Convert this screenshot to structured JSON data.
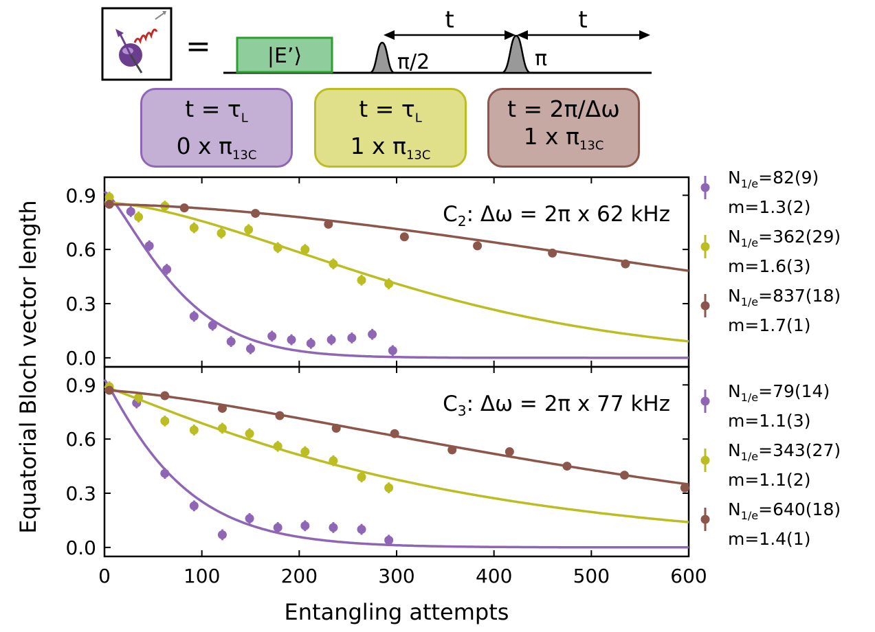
{
  "colors": {
    "purple": "#8e66b5",
    "yellow": "#bcbd22",
    "brown": "#8c564b"
  },
  "sequence": {
    "equals": "=",
    "state_label": "|E’⟩",
    "pulse1_label": "π/2",
    "pulse2_label": "π",
    "t_label_1": "t",
    "t_label_2": "t"
  },
  "boxes": [
    {
      "line1": "t = τL",
      "line2": "0 x π13C"
    },
    {
      "line1": "t = τL",
      "line2": "1 x π13C"
    },
    {
      "line1": "t = 2π/Δω",
      "line2": "1 x π13C"
    }
  ],
  "chart_data": {
    "type": "scatter",
    "xlabel": "Entangling attempts",
    "ylabel": "Equatorial Bloch vector length",
    "xlim": [
      0,
      600
    ],
    "ylim": [
      -0.05,
      1.0
    ],
    "xticks": [
      0,
      100,
      200,
      300,
      400,
      500,
      600
    ],
    "yticks": [
      0.0,
      0.3,
      0.6,
      0.9
    ],
    "panels": [
      {
        "annotation": "C2: Δω = 2π x 62 kHz",
        "series": [
          {
            "color": "purple",
            "legend": [
              "N1/e=82(9)",
              "m=1.3(2)"
            ],
            "fit": {
              "A": 0.92,
              "N": 82,
              "m": 1.3
            },
            "x": [
              27,
              46,
              64,
              92,
              111,
              130,
              150,
              172,
              192,
              212,
              233,
              254,
              275,
              296
            ],
            "y": [
              0.81,
              0.62,
              0.49,
              0.23,
              0.18,
              0.09,
              0.05,
              0.12,
              0.1,
              0.08,
              0.1,
              0.11,
              0.13,
              0.04
            ],
            "err": 0.03
          },
          {
            "color": "yellow",
            "legend": [
              "N1/e=362(29)",
              "m=1.6(3)"
            ],
            "fit": {
              "A": 0.86,
              "N": 362,
              "m": 1.6
            },
            "x": [
              5,
              35,
              62,
              92,
              120,
              148,
              178,
              206,
              235,
              264,
              292
            ],
            "y": [
              0.89,
              0.78,
              0.84,
              0.72,
              0.69,
              0.71,
              0.61,
              0.6,
              0.52,
              0.43,
              0.41
            ],
            "err": 0.03
          },
          {
            "color": "brown",
            "legend": [
              "N1/e=837(18)",
              "m=1.7(1)"
            ],
            "fit": {
              "A": 0.85,
              "N": 837,
              "m": 1.7
            },
            "x": [
              5,
              82,
              155,
              230,
              308,
              383,
              460,
              535
            ],
            "y": [
              0.85,
              0.83,
              0.8,
              0.74,
              0.67,
              0.62,
              0.58,
              0.52
            ],
            "err": 0.015
          }
        ]
      },
      {
        "annotation": "C3: Δω = 2π x 77 kHz",
        "series": [
          {
            "color": "purple",
            "legend": [
              "N1/e=79(14)",
              "m=1.1(3)"
            ],
            "fit": {
              "A": 0.93,
              "N": 79,
              "m": 1.1
            },
            "x": [
              33,
              62,
              92,
              121,
              149,
              178,
              206,
              235,
              264,
              292
            ],
            "y": [
              0.8,
              0.41,
              0.23,
              0.07,
              0.16,
              0.11,
              0.12,
              0.11,
              0.1,
              0.04
            ],
            "err": 0.03
          },
          {
            "color": "yellow",
            "legend": [
              "N1/e=343(27)",
              "m=1.1(2)"
            ],
            "fit": {
              "A": 0.89,
              "N": 343,
              "m": 1.1
            },
            "x": [
              5,
              35,
              62,
              92,
              121,
              149,
              178,
              206,
              235,
              264,
              292
            ],
            "y": [
              0.89,
              0.83,
              0.7,
              0.65,
              0.66,
              0.63,
              0.56,
              0.53,
              0.48,
              0.39,
              0.33
            ],
            "err": 0.03
          },
          {
            "color": "brown",
            "legend": [
              "N1/e=640(18)",
              "m=1.4(1)"
            ],
            "fit": {
              "A": 0.87,
              "N": 640,
              "m": 1.4
            },
            "x": [
              5,
              62,
              121,
              180,
              238,
              298,
              357,
              416,
              475,
              534,
              596
            ],
            "y": [
              0.87,
              0.84,
              0.77,
              0.73,
              0.66,
              0.63,
              0.54,
              0.53,
              0.45,
              0.4,
              0.33
            ],
            "err": 0.015
          }
        ]
      }
    ]
  }
}
